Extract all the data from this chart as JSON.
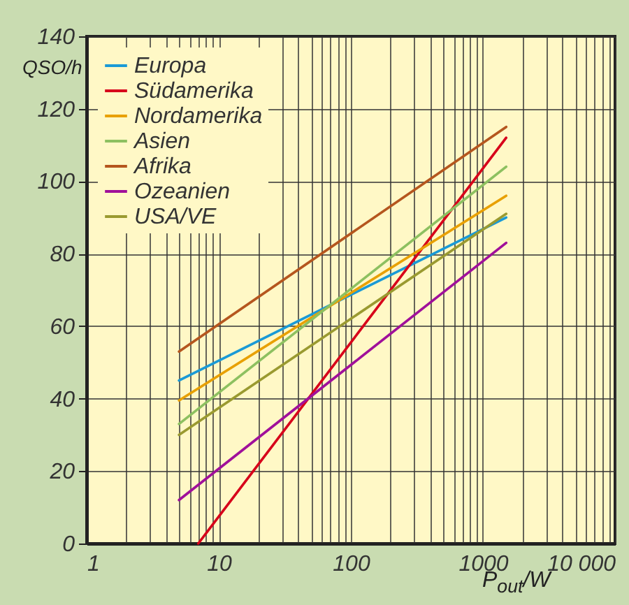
{
  "chart_data": {
    "type": "line",
    "xlabel": "P$_{out}$/W",
    "ylabel": "QSO/h",
    "log": "x",
    "grid": true,
    "legend": "top left",
    "xlim": [
      1,
      10000
    ],
    "ylim": [
      0,
      140
    ],
    "xticks": [
      1,
      {
        "value": 2,
        "label": null
      },
      {
        "value": 3,
        "label": null
      },
      {
        "value": 4,
        "label": null
      },
      {
        "value": 5,
        "label": null
      },
      {
        "value": 6,
        "label": null
      },
      {
        "value": 7,
        "label": null
      },
      {
        "value": 8,
        "label": null
      },
      {
        "value": 9,
        "label": null
      },
      10,
      {
        "value": 20,
        "label": null
      },
      {
        "value": 30,
        "label": null
      },
      {
        "value": 40,
        "label": null
      },
      {
        "value": 50,
        "label": null
      },
      {
        "value": 60,
        "label": null
      },
      {
        "value": 70,
        "label": null
      },
      {
        "value": 80,
        "label": null
      },
      {
        "value": 90,
        "label": null
      },
      100,
      {
        "value": 200,
        "label": null
      },
      {
        "value": 300,
        "label": null
      },
      {
        "value": 400,
        "label": null
      },
      {
        "value": 500,
        "label": null
      },
      {
        "value": 600,
        "label": null
      },
      {
        "value": 700,
        "label": null
      },
      {
        "value": 800,
        "label": null
      },
      {
        "value": 900,
        "label": null
      },
      1000,
      {
        "value": 2000,
        "label": null
      },
      {
        "value": 3000,
        "label": null
      },
      {
        "value": 4000,
        "label": null
      },
      {
        "value": 5000,
        "label": null
      },
      {
        "value": 6000,
        "label": null
      },
      {
        "value": 7000,
        "label": null
      },
      {
        "value": 8000,
        "label": null
      },
      {
        "value": 9000,
        "label": null
      },
      {
        "value": 10000,
        "label": "10 000"
      }
    ],
    "yticks": [
      0,
      20,
      40,
      60,
      80,
      100,
      120,
      140
    ],
    "series": [
      {
        "name": "Europa",
        "color": "#1a9ad6",
        "x": [
          5,
          1500
        ],
        "values": [
          45,
          90
        ]
      },
      {
        "name": "Südamerika",
        "color": "#d7001a",
        "x": [
          7,
          1500
        ],
        "values": [
          0,
          112
        ]
      },
      {
        "name": "Nordamerika",
        "color": "#e8a000",
        "x": [
          5,
          1500
        ],
        "values": [
          39.5,
          96
        ]
      },
      {
        "name": "Asien",
        "color": "#8dc060",
        "x": [
          5,
          1500
        ],
        "values": [
          33,
          104
        ]
      },
      {
        "name": "Afrika",
        "color": "#b5561e",
        "x": [
          5,
          1500
        ],
        "values": [
          53,
          115
        ]
      },
      {
        "name": "Ozeanien",
        "color": "#a0109a",
        "x": [
          5,
          1500
        ],
        "values": [
          12,
          83
        ]
      },
      {
        "name": "USA/VE",
        "color": "#9a9a30",
        "x": [
          5,
          1500
        ],
        "values": [
          30,
          91
        ]
      }
    ]
  }
}
